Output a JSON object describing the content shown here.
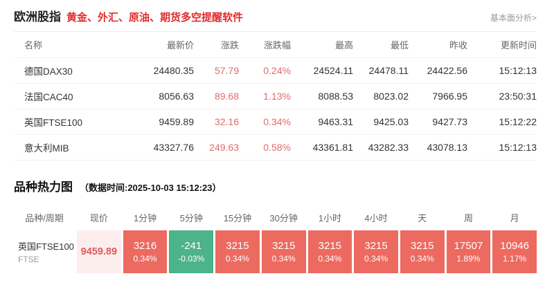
{
  "colors": {
    "accent_red": "#e22b2b",
    "change_red": "#e2696a",
    "heat_up": "#ec6a60",
    "heat_down": "#4db388",
    "price_cell_bg": "#fdeeee",
    "price_cell_text": "#e05a5a"
  },
  "header": {
    "title": "欧洲股指",
    "subtitle": "黄金、外汇、原油、期货多空提醒软件",
    "link": "基本面分析>"
  },
  "index_table": {
    "columns": [
      "名称",
      "最新价",
      "涨跌",
      "涨跌幅",
      "最高",
      "最低",
      "昨收",
      "更新时间"
    ],
    "rows": [
      {
        "name": "德国DAX30",
        "last": "24480.35",
        "change": "57.79",
        "change_pct": "0.24%",
        "high": "24524.11",
        "low": "24478.11",
        "prev_close": "24422.56",
        "updated": "15:12:13"
      },
      {
        "name": "法国CAC40",
        "last": "8056.63",
        "change": "89.68",
        "change_pct": "1.13%",
        "high": "8088.53",
        "low": "8023.02",
        "prev_close": "7966.95",
        "updated": "23:50:31"
      },
      {
        "name": "英国FTSE100",
        "last": "9459.89",
        "change": "32.16",
        "change_pct": "0.34%",
        "high": "9463.31",
        "low": "9425.03",
        "prev_close": "9427.73",
        "updated": "15:12:22"
      },
      {
        "name": "意大利MIB",
        "last": "43327.76",
        "change": "249.63",
        "change_pct": "0.58%",
        "high": "43361.81",
        "low": "43282.33",
        "prev_close": "43078.13",
        "updated": "15:12:13"
      }
    ]
  },
  "heatmap": {
    "title": "品种热力图",
    "subtitle": "（数据时间:2025-10-03 15:12:23）",
    "columns": [
      "品种/周期",
      "现价",
      "1分钟",
      "5分钟",
      "15分钟",
      "30分钟",
      "1小时",
      "4小时",
      "天",
      "周",
      "月"
    ],
    "rows": [
      {
        "name": "英国FTSE100",
        "code": "FTSE",
        "price": "9459.89",
        "cells": [
          {
            "value": "3216",
            "pct": "0.34%",
            "direction": "up"
          },
          {
            "value": "-241",
            "pct": "-0.03%",
            "direction": "down"
          },
          {
            "value": "3215",
            "pct": "0.34%",
            "direction": "up"
          },
          {
            "value": "3215",
            "pct": "0.34%",
            "direction": "up"
          },
          {
            "value": "3215",
            "pct": "0.34%",
            "direction": "up"
          },
          {
            "value": "3215",
            "pct": "0.34%",
            "direction": "up"
          },
          {
            "value": "3215",
            "pct": "0.34%",
            "direction": "up"
          },
          {
            "value": "17507",
            "pct": "1.89%",
            "direction": "up"
          },
          {
            "value": "10946",
            "pct": "1.17%",
            "direction": "up"
          }
        ]
      }
    ]
  }
}
